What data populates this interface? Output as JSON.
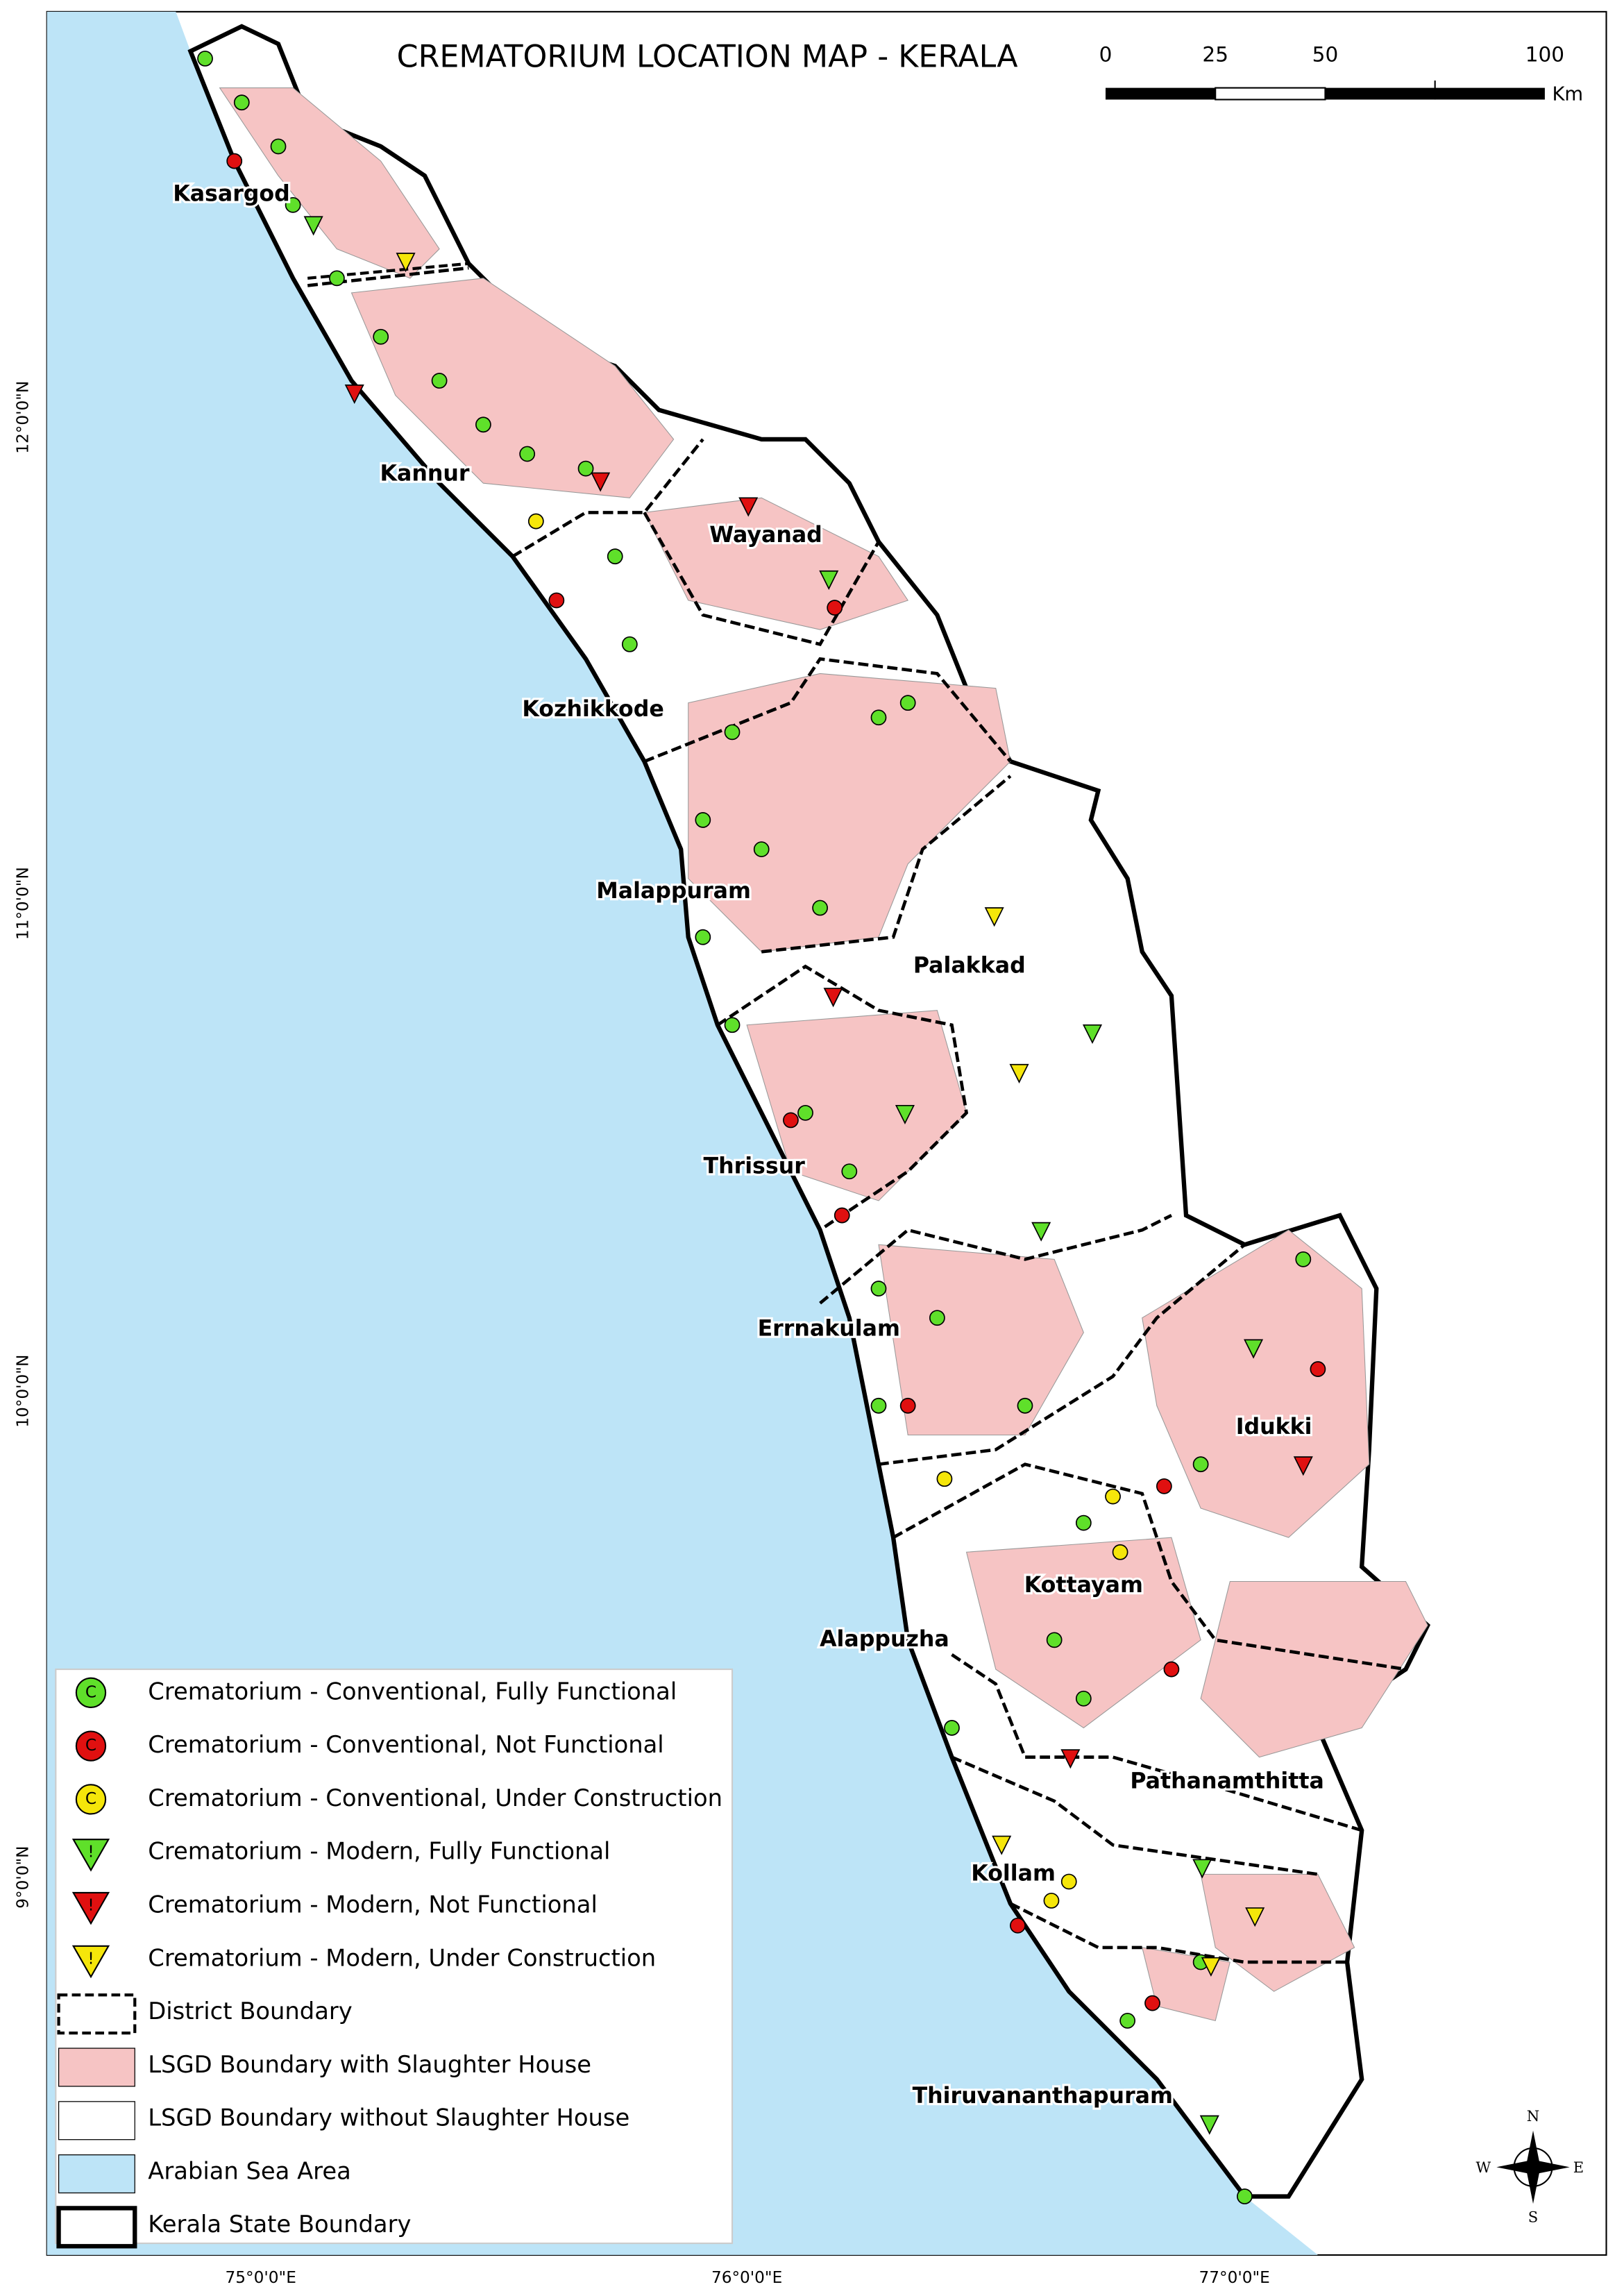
{
  "title": "CREMATORIUM LOCATION MAP - KERALA",
  "scale_bar": {
    "labels": [
      "0",
      "25",
      "50",
      "100"
    ],
    "unit": "Km"
  },
  "latitude_labels": [
    "12°0'0\"N",
    "11°0'0\"N",
    "10°0'0\"N",
    "9°0'0\"N"
  ],
  "longitude_labels": [
    "75°0'0\"E",
    "76°0'0\"E",
    "77°0'0\"E"
  ],
  "districts": [
    "Kasargod",
    "Kannur",
    "Wayanad",
    "Kozhikkode",
    "Malappuram",
    "Palakkad",
    "Thrissur",
    "Errnakulam",
    "Idukki",
    "Kottayam",
    "Alappuzha",
    "Pathanamthitta",
    "Kollam",
    "Thiruvananthapuram"
  ],
  "legend": [
    {
      "symbol": "C",
      "label": "Crematorium - Conventional, Fully Functional"
    },
    {
      "symbol": "C",
      "label": "Crematorium - Conventional, Not Functional"
    },
    {
      "symbol": "C",
      "label": "Crematorium - Conventional, Under Construction"
    },
    {
      "symbol": "!",
      "label": "Crematorium - Modern, Fully Functional"
    },
    {
      "symbol": "!",
      "label": "Crematorium - Modern, Not Functional"
    },
    {
      "symbol": "!",
      "label": "Crematorium - Modern, Under Construction"
    },
    {
      "label": "District Boundary"
    },
    {
      "label": "LSGD Boundary with Slaughter House"
    },
    {
      "label": "LSGD Boundary without Slaughter House"
    },
    {
      "label": "Arabian Sea Area"
    },
    {
      "label": "Kerala State Boundary"
    }
  ],
  "compass": {
    "north": "N",
    "east": "E",
    "south": "S",
    "west": "W"
  }
}
